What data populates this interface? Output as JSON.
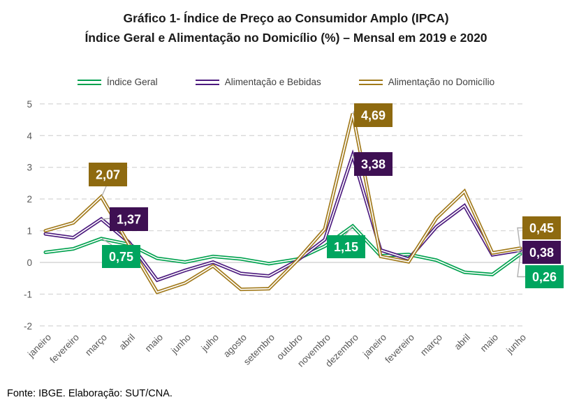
{
  "title": {
    "line1": "Gráfico 1- Índice de Preço ao Consumidor Amplo (IPCA)",
    "line2": "Índice Geral e Alimentação no Domicílio (%) – Mensal em 2019 e 2020"
  },
  "footer": {
    "text": "Fonte: IBGE. Elaboração: SUT/CNA."
  },
  "colors": {
    "gridline": "#D9D9D9",
    "zero_line": "#D6D6D6",
    "axis_text": "#595959",
    "leader_line": "#AFAFAF",
    "label_text": "#FFFFFF"
  },
  "chart_data": {
    "type": "line",
    "title": "Gráfico 1- Índice de Preço ao Consumidor Amplo (IPCA) — Índice Geral e Alimentação no Domicílio (%) – Mensal em 2019 e 2020",
    "xlabel": "",
    "ylabel": "",
    "ylim": [
      -2,
      5
    ],
    "yticks": [
      5,
      4,
      3,
      2,
      1,
      0,
      -1,
      -2
    ],
    "grid": "horizontal-dashed",
    "legend_position": "top",
    "categories": [
      "janeiro",
      "fevereiro",
      "março",
      "abril",
      "maio",
      "junho",
      "julho",
      "agosto",
      "setembro",
      "outubro",
      "novembro",
      "dezembro",
      "janeiro",
      "fevereiro",
      "março",
      "abril",
      "maio",
      "junho"
    ],
    "series": [
      {
        "name": "Índice Geral",
        "color": "#00A14E",
        "label_color": "#00A55F",
        "values": [
          0.32,
          0.43,
          0.75,
          0.57,
          0.13,
          0.01,
          0.19,
          0.11,
          -0.04,
          0.1,
          0.51,
          1.15,
          0.21,
          0.25,
          0.07,
          -0.31,
          -0.38,
          0.26
        ]
      },
      {
        "name": "Alimentação e Bebidas",
        "color": "#4C1A7E",
        "label_color": "#3E1053",
        "values": [
          0.9,
          0.78,
          1.37,
          0.63,
          -0.56,
          -0.25,
          0.01,
          -0.35,
          -0.43,
          0.05,
          0.72,
          3.38,
          0.39,
          0.11,
          1.13,
          1.79,
          0.24,
          0.38
        ]
      },
      {
        "name": "Alimentação no Domicílio",
        "color": "#A1791A",
        "label_color": "#8E6A10",
        "values": [
          1.0,
          1.25,
          2.07,
          0.55,
          -0.94,
          -0.65,
          -0.11,
          -0.85,
          -0.83,
          0.05,
          1.05,
          4.69,
          0.19,
          0.02,
          1.4,
          2.24,
          0.3,
          0.45
        ]
      }
    ],
    "callouts": [
      {
        "series_index": 2,
        "category_index": 2,
        "point": "março 2019",
        "text": "2,07"
      },
      {
        "series_index": 1,
        "category_index": 2,
        "point": "março 2019",
        "text": "1,37"
      },
      {
        "series_index": 0,
        "category_index": 2,
        "point": "março 2019",
        "text": "0,75"
      },
      {
        "series_index": 2,
        "category_index": 11,
        "point": "dezembro 2019",
        "text": "4,69"
      },
      {
        "series_index": 1,
        "category_index": 11,
        "point": "dezembro 2019",
        "text": "3,38"
      },
      {
        "series_index": 0,
        "category_index": 11,
        "point": "dezembro 2019",
        "text": "1,15"
      },
      {
        "series_index": 2,
        "category_index": 17,
        "point": "junho 2020",
        "text": "0,45"
      },
      {
        "series_index": 1,
        "category_index": 17,
        "point": "junho 2020",
        "text": "0,38"
      },
      {
        "series_index": 0,
        "category_index": 17,
        "point": "junho 2020",
        "text": "0,26"
      }
    ]
  }
}
